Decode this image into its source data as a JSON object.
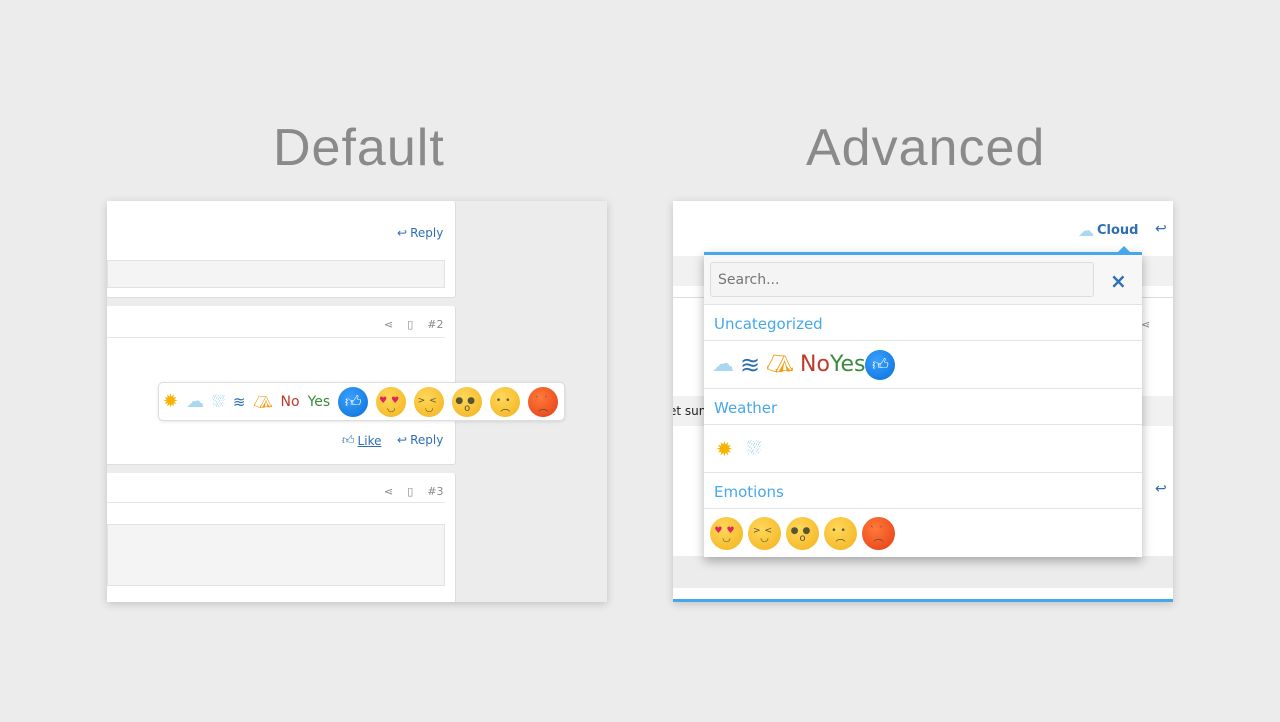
{
  "default": {
    "title": "Default",
    "post1": {
      "reply_label": "Reply"
    },
    "post2": {
      "number": "#2",
      "like_label": "Like",
      "reply_label": "Reply"
    },
    "post3": {
      "number": "#3"
    },
    "reaction_bar": [
      {
        "name": "sun",
        "icon": "sun-icon"
      },
      {
        "name": "cloud",
        "icon": "cloud-icon"
      },
      {
        "name": "rain",
        "icon": "rain-icon"
      },
      {
        "name": "layers",
        "icon": "layers-icon"
      },
      {
        "name": "tent",
        "icon": "tent-icon"
      },
      {
        "name": "no",
        "label": "No"
      },
      {
        "name": "yes",
        "label": "Yes"
      },
      {
        "name": "like",
        "icon": "thumbs-up-icon"
      },
      {
        "name": "love",
        "icon": "heart-eyes-icon"
      },
      {
        "name": "haha",
        "icon": "laughing-icon"
      },
      {
        "name": "wow",
        "icon": "surprised-icon"
      },
      {
        "name": "sad",
        "icon": "sad-icon"
      },
      {
        "name": "angry",
        "icon": "angry-icon"
      }
    ]
  },
  "advanced": {
    "title": "Advanced",
    "selected_reaction": "Cloud",
    "partial_text": "et sun",
    "popup": {
      "search_placeholder": "Search...",
      "close": "×",
      "sections": [
        {
          "title": "Uncategorized",
          "items": [
            "cloud",
            "layers",
            "tent",
            "No",
            "Yes",
            "like"
          ]
        },
        {
          "title": "Weather",
          "items": [
            "sun",
            "rain"
          ]
        },
        {
          "title": "Emotions",
          "items": [
            "love",
            "haha",
            "wow",
            "sad",
            "angry"
          ]
        }
      ]
    }
  },
  "colors": {
    "accent": "#47a7eb",
    "link": "#2e6fb3",
    "no": "#c0392b",
    "yes": "#3b8a3b"
  }
}
